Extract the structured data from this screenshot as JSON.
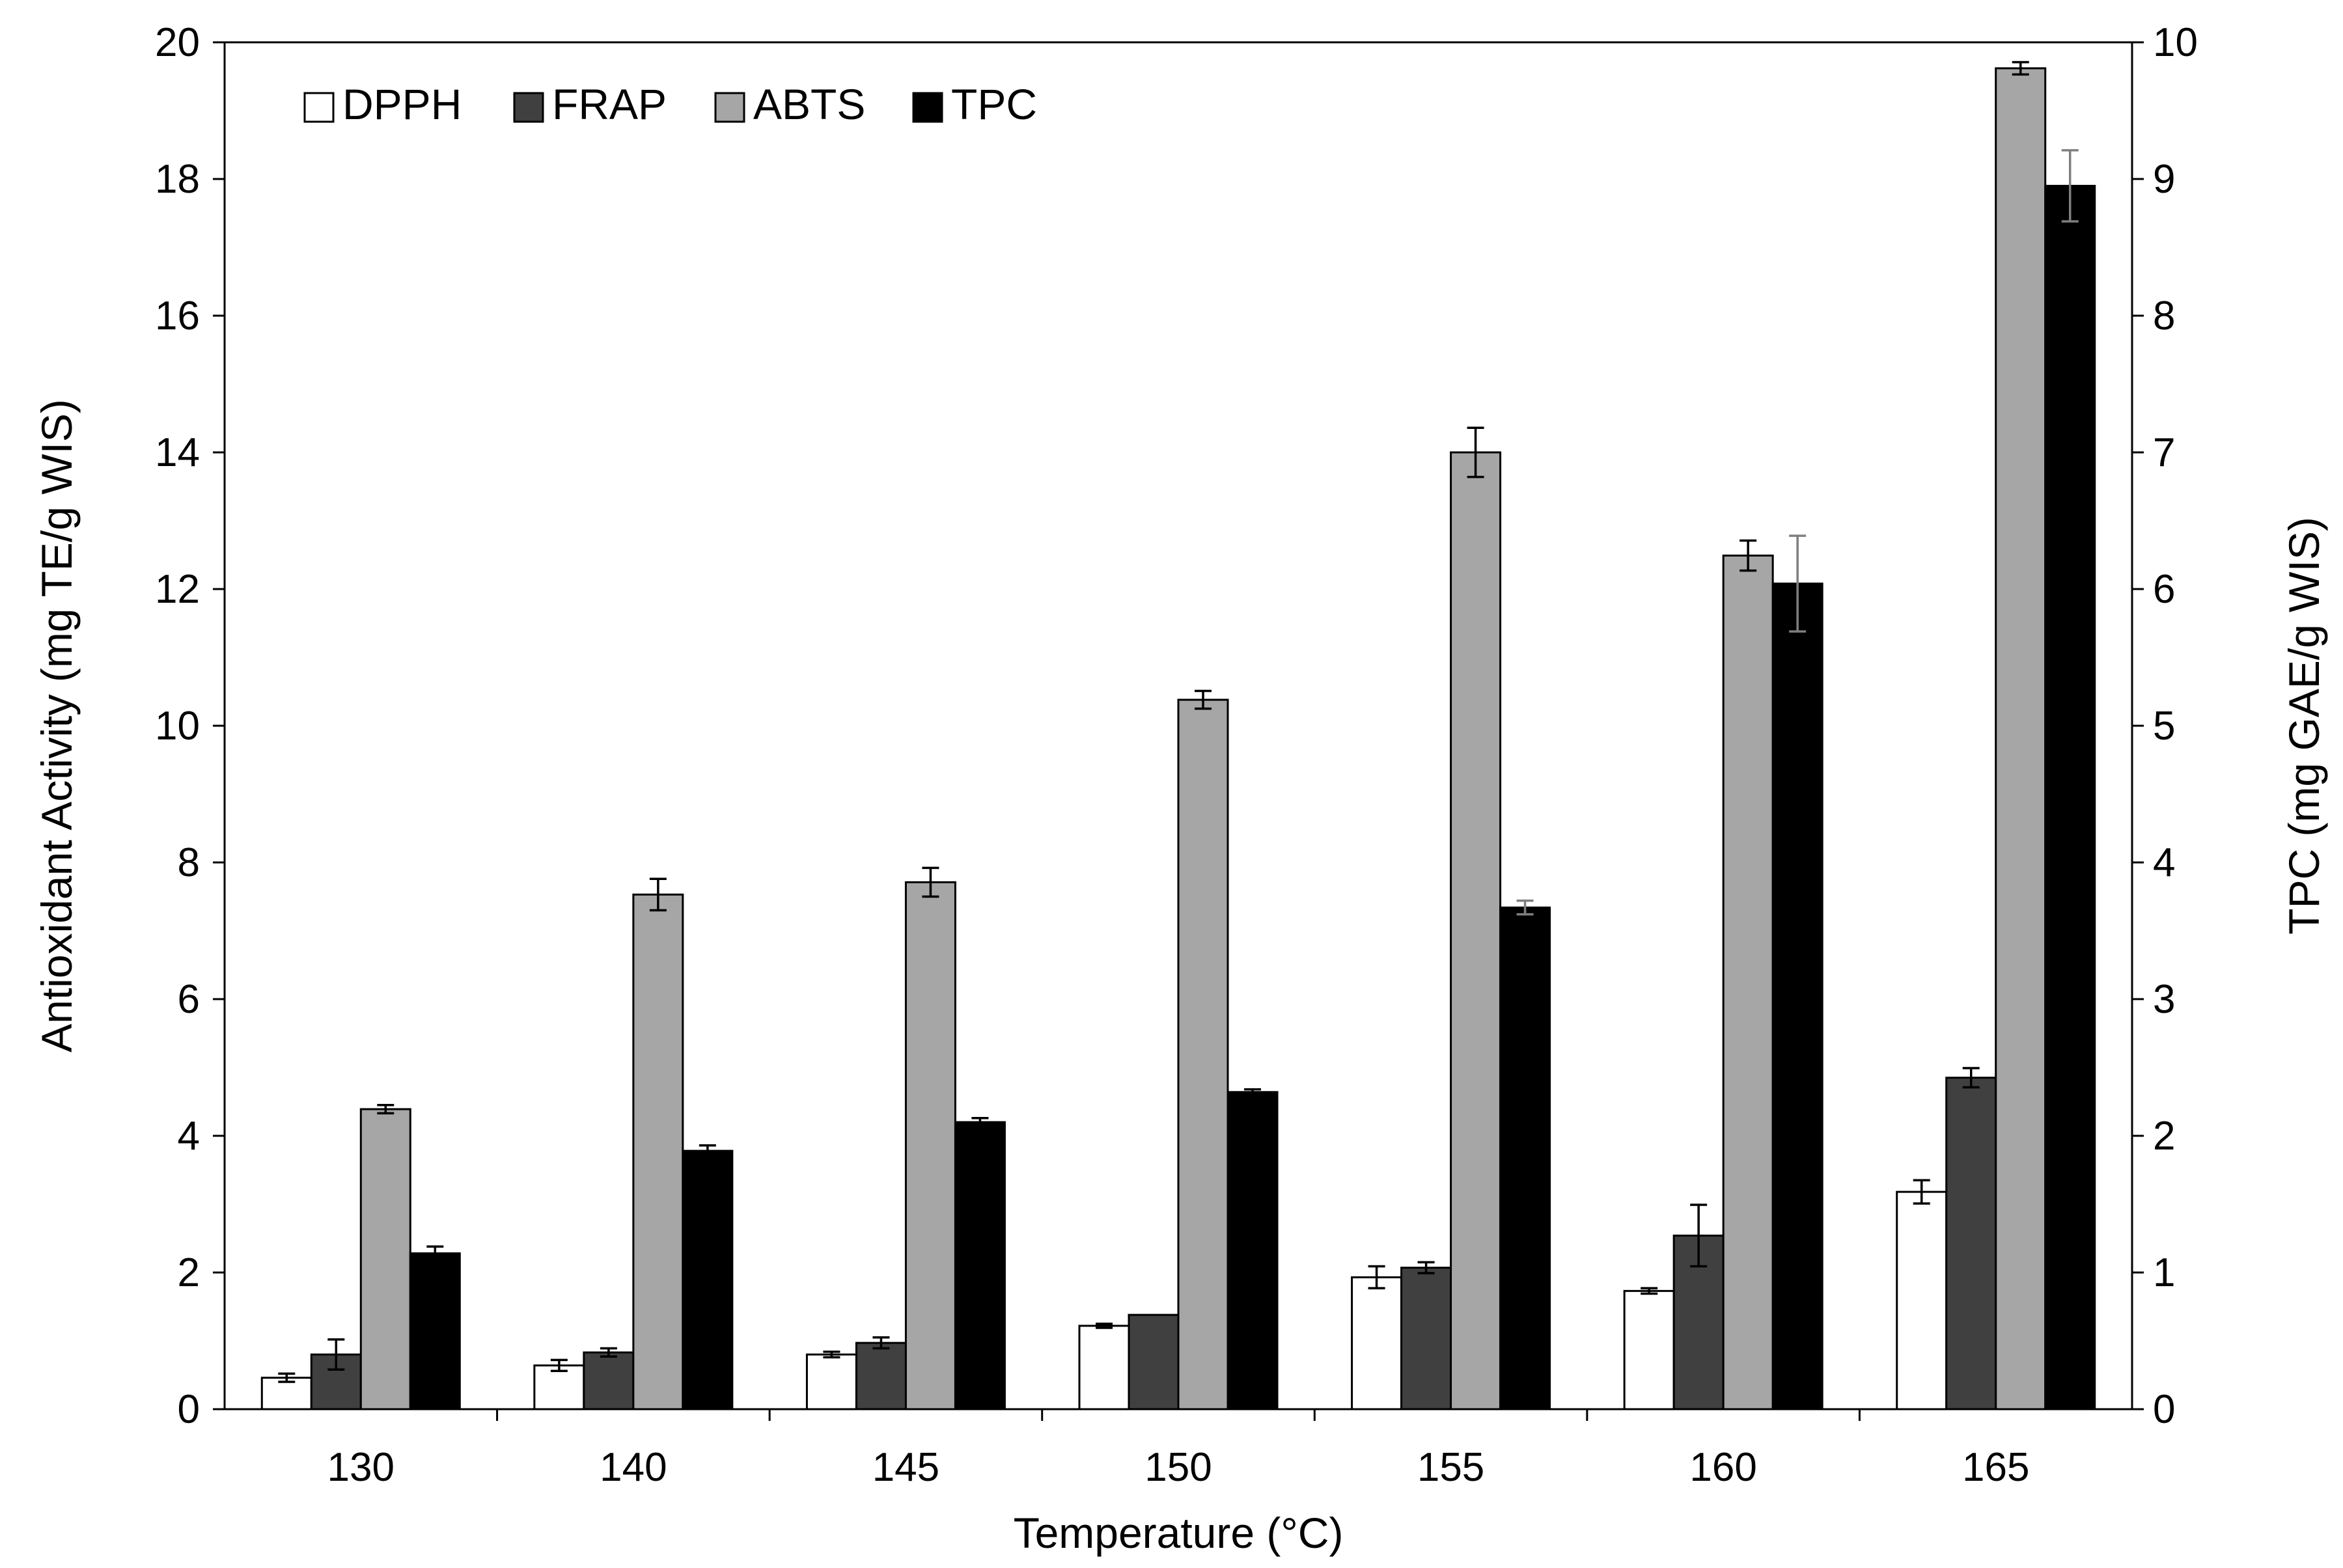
{
  "chart_data": {
    "type": "bar",
    "title": "",
    "xlabel": "Temperature (°C)",
    "ylabel": "Antioxidant Activity (mg TE/g WIS)",
    "y2label": "TPC (mg GAE/g WIS)",
    "categories": [
      "130",
      "140",
      "145",
      "150",
      "155",
      "160",
      "165"
    ],
    "ylim": [
      0,
      20
    ],
    "y2lim": [
      0,
      10
    ],
    "yticks": [
      "0",
      "2",
      "4",
      "6",
      "8",
      "10",
      "12",
      "14",
      "16",
      "18",
      "20"
    ],
    "y2ticks": [
      "0",
      "1",
      "2",
      "3",
      "4",
      "5",
      "6",
      "7",
      "8",
      "9",
      "10"
    ],
    "legend_position": "top-left",
    "grid": false,
    "series": [
      {
        "name": "DPPH",
        "axis": "left",
        "color": "#ffffff",
        "values": [
          0.46,
          0.64,
          0.8,
          1.22,
          1.93,
          1.73,
          3.18
        ],
        "errors": [
          0.06,
          0.08,
          0.04,
          0.03,
          0.16,
          0.04,
          0.17
        ]
      },
      {
        "name": "FRAP",
        "axis": "left",
        "color": "#404040",
        "values": [
          0.8,
          0.83,
          0.97,
          1.38,
          2.07,
          2.54,
          4.85
        ],
        "errors": [
          0.22,
          0.06,
          0.08,
          0.0,
          0.08,
          0.45,
          0.14
        ]
      },
      {
        "name": "ABTS",
        "axis": "left",
        "color": "#a6a6a6",
        "values": [
          4.39,
          7.53,
          7.71,
          10.38,
          14.0,
          12.49,
          19.62
        ],
        "errors": [
          0.06,
          0.23,
          0.21,
          0.13,
          0.36,
          0.22,
          0.09
        ]
      },
      {
        "name": "TPC",
        "axis": "right",
        "color": "#000000",
        "values": [
          1.14,
          1.89,
          2.1,
          2.32,
          3.67,
          6.04,
          8.95
        ],
        "errors": [
          0.05,
          0.04,
          0.03,
          0.02,
          0.05,
          0.35,
          0.26
        ]
      }
    ]
  }
}
